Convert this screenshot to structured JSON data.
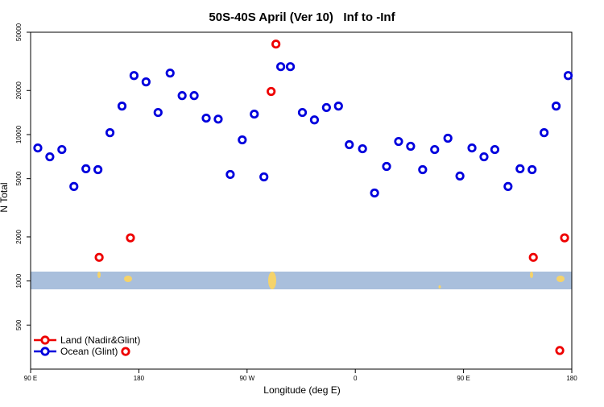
{
  "chart_data": {
    "type": "scatter",
    "title": "50S-40S April (Ver 10)   Inf to -Inf",
    "x_label": "Longitude (deg E)",
    "y_label": "N Total",
    "log_y": true,
    "legend": "bottom-left",
    "xlim": [
      90,
      540
    ],
    "ylim": [
      250,
      50000
    ],
    "xticks": [
      {
        "value": 90,
        "label": "90 E"
      },
      180,
      {
        "value": 270,
        "label": "90 W"
      },
      {
        "value": 360,
        "label": "0"
      },
      {
        "value": 450,
        "label": "90 E"
      },
      {
        "value": 540,
        "label": "180"
      }
    ],
    "yticks": [
      500,
      1000,
      2000,
      5000,
      10000,
      20000,
      50000
    ],
    "series": [
      {
        "name": "Land (Nadir&Glint)",
        "color": "#ee0000",
        "x": [
          147,
          173,
          290,
          294,
          169,
          508,
          534,
          530
        ],
        "values": [
          1450,
          1970,
          19700,
          41500,
          330,
          1450,
          1970,
          335
        ]
      },
      {
        "name": "Ocean (Glint)",
        "color": "#0000dd",
        "x": [
          96,
          106,
          116,
          126,
          136,
          146,
          156,
          166,
          176,
          186,
          196,
          206,
          216,
          226,
          236,
          246,
          256,
          266,
          276,
          284,
          298,
          306,
          316,
          326,
          336,
          346,
          355,
          366,
          376,
          386,
          396,
          406,
          416,
          426,
          437,
          447,
          457,
          467,
          476,
          487,
          497,
          507,
          517,
          527,
          537
        ],
        "values": [
          8100,
          7050,
          7900,
          4420,
          5840,
          5760,
          10300,
          15650,
          25300,
          22900,
          14150,
          26300,
          18450,
          18450,
          12950,
          12750,
          5340,
          9200,
          13800,
          5140,
          29100,
          29100,
          14150,
          12600,
          15300,
          15650,
          8530,
          8000,
          3990,
          6060,
          8970,
          8320,
          5760,
          7900,
          9440,
          5210,
          8100,
          7050,
          7900,
          4420,
          5840,
          5760,
          10300,
          15650,
          25300
        ]
      }
    ]
  }
}
